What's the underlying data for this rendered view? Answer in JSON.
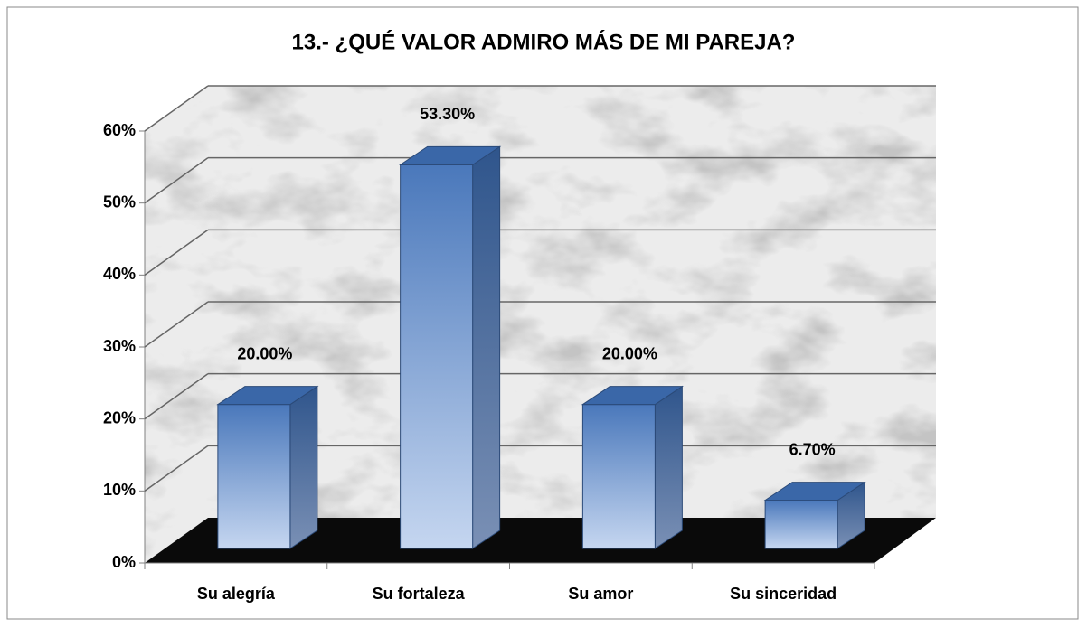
{
  "chart_data": {
    "type": "bar3d",
    "title": "13.- ¿QUÉ VALOR ADMIRO MÁS DE MI PAREJA?",
    "categories": [
      "Su alegría",
      "Su fortaleza",
      "Su amor",
      "Su sinceridad"
    ],
    "values": [
      20,
      53.3,
      20,
      6.7
    ],
    "value_labels": [
      "20.00%",
      "53.30%",
      "20.00%",
      "6.70%"
    ],
    "color": "#4f81bd",
    "ylim": [
      0,
      60
    ],
    "yticks": [
      {
        "value": 0,
        "label": "0%"
      },
      {
        "value": 10,
        "label": "10%"
      },
      {
        "value": 20,
        "label": "20%"
      },
      {
        "value": 30,
        "label": "30%"
      },
      {
        "value": 40,
        "label": "40%"
      },
      {
        "value": 50,
        "label": "50%"
      },
      {
        "value": 60,
        "label": "60%"
      }
    ],
    "grid": true
  }
}
